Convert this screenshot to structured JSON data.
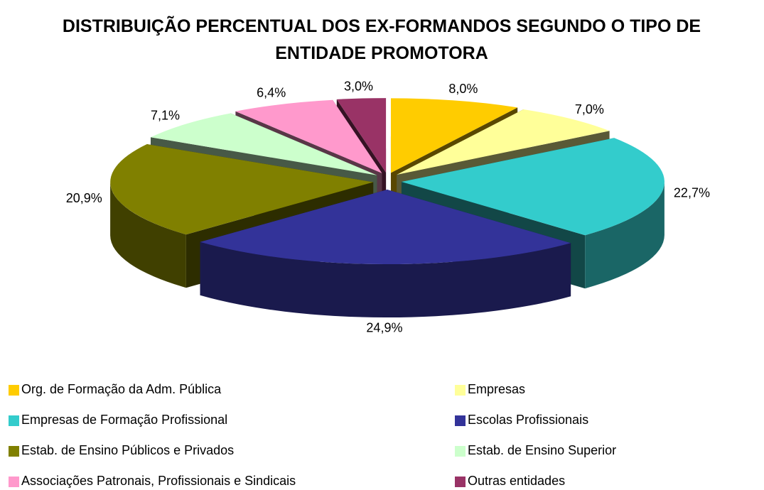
{
  "chart_data": {
    "type": "pie3d",
    "title": "DISTRIBUIÇÃO PERCENTUAL DOS EX-FORMANDOS SEGUNDO O TIPO DE ENTIDADE PROMOTORA",
    "categories": [
      "Org. de Formação da Adm. Pública",
      "Empresas",
      "Empresas de Formação Profissional",
      "Escolas Profissionais",
      "Estab. de Ensino Públicos e Privados",
      "Estab. de Ensino Superior",
      "Associações Patronais, Profissionais e Sindicais",
      "Outras entidades"
    ],
    "values": [
      8.0,
      7.0,
      22.7,
      24.9,
      20.9,
      7.1,
      6.4,
      3.0
    ],
    "value_labels": [
      "8,0%",
      "7,0%",
      "22,7%",
      "24,9%",
      "20,9%",
      "7,1%",
      "6,4%",
      "3,0%"
    ],
    "colors": [
      "#FFCC00",
      "#FFFF99",
      "#33CCCC",
      "#333399",
      "#808000",
      "#CCFFCC",
      "#FF99CC",
      "#993366"
    ],
    "legend": "bottom"
  }
}
